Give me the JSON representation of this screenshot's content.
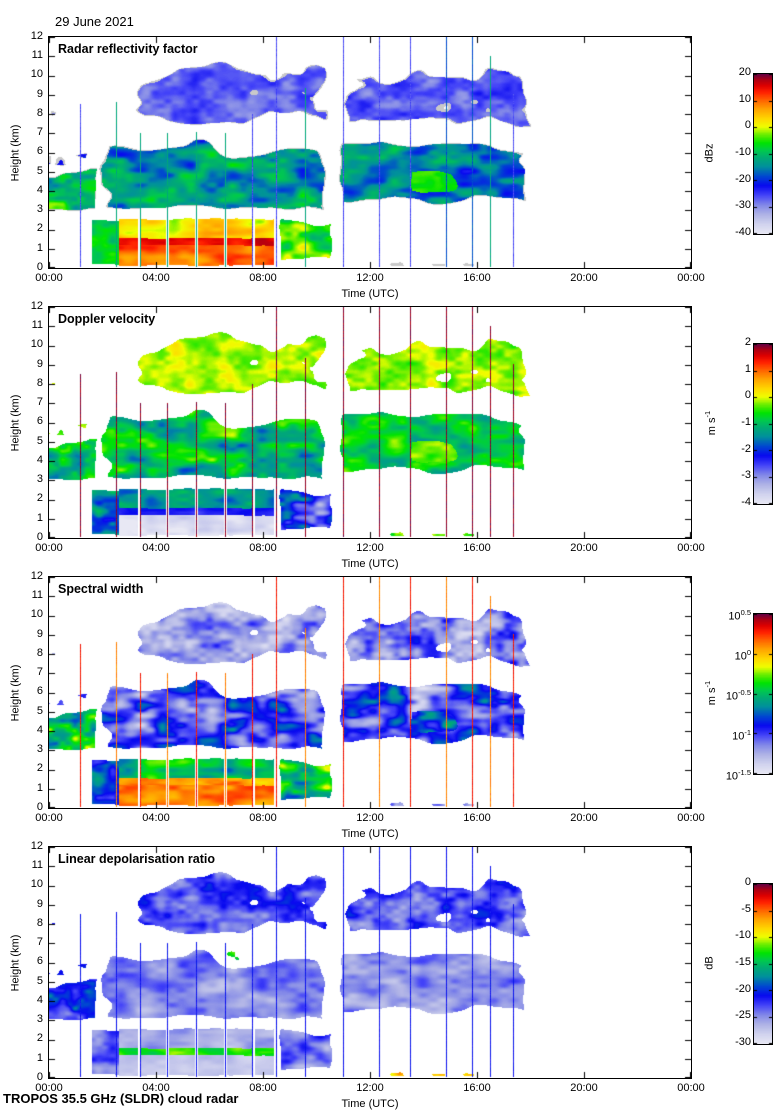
{
  "header": {
    "date": "29 June 2021"
  },
  "footer": {
    "instrument": "TROPOS 35.5 GHz (SLDR) cloud radar"
  },
  "chart_data": {
    "type": "heatmap",
    "notes": "Four stacked time-height quicklook panels of a vertically pointing cloud radar. Data present from 00:00 to about 18:20 UTC. Deep precipitating system 01:30-10:30 with rain below 2.5 km, bright melting layer near 1.3 km, cloud tops to 7 km plus cirrus 7-11 km; second non-precipitating cloud system 10:45-18:15 between 3 and 11 km; drizzle/clutter specks near the surface 10:45-16:30; thin vertical calibration-scan stripes.",
    "x_axis": {
      "label": "Time (UTC)",
      "range_hours": [
        0,
        24
      ],
      "ticks": [
        "00:00",
        "04:00",
        "08:00",
        "12:00",
        "16:00",
        "20:00",
        "00:00"
      ]
    },
    "y_axis": {
      "label": "Height (km)",
      "range_km": [
        0,
        12
      ],
      "ticks": [
        "0",
        "1",
        "2",
        "3",
        "4",
        "5",
        "6",
        "7",
        "8",
        "9",
        "10",
        "11",
        "12"
      ]
    },
    "data_extent_hours": [
      0,
      18.35
    ],
    "panels": [
      {
        "title": "Radar reflectivity factor",
        "colorbar": {
          "label": "dBz",
          "vmin": -40,
          "vmax": 20,
          "ticks": [
            "20",
            "10",
            "0",
            "-10",
            "-20",
            "-30",
            "-40"
          ]
        }
      },
      {
        "title": "Doppler velocity",
        "colorbar": {
          "label": "m s^-1",
          "vmin": -4,
          "vmax": 2,
          "ticks": [
            "2",
            "1",
            "0",
            "-1",
            "-2",
            "-3",
            "-4"
          ]
        }
      },
      {
        "title": "Spectral width",
        "colorbar": {
          "label": "m s^-1",
          "vmin": -1.5,
          "vmax": 0.5,
          "log_scale": true,
          "ticks": [
            "10^0.5",
            "10^0",
            "10^-0.5",
            "10^-1",
            "10^-1.5"
          ]
        }
      },
      {
        "title": "Linear depolarisation ratio",
        "colorbar": {
          "label": "dB",
          "vmin": -30,
          "vmax": 0,
          "ticks": [
            "0",
            "-5",
            "-10",
            "-15",
            "-20",
            "-25",
            "-30"
          ]
        }
      }
    ],
    "colormap_stops": [
      [
        0.0,
        "#e8e8f4"
      ],
      [
        0.06,
        "#d0d2ee"
      ],
      [
        0.12,
        "#aeb2e6"
      ],
      [
        0.18,
        "#8288e8"
      ],
      [
        0.24,
        "#4444f8"
      ],
      [
        0.3,
        "#0808f0"
      ],
      [
        0.36,
        "#0048d0"
      ],
      [
        0.42,
        "#00909c"
      ],
      [
        0.47,
        "#00a878"
      ],
      [
        0.52,
        "#00c850"
      ],
      [
        0.57,
        "#00e400"
      ],
      [
        0.62,
        "#66ee00"
      ],
      [
        0.67,
        "#efff00"
      ],
      [
        0.72,
        "#ffd800"
      ],
      [
        0.78,
        "#ffa400"
      ],
      [
        0.84,
        "#ff6000"
      ],
      [
        0.89,
        "#ff1e00"
      ],
      [
        0.93,
        "#dd0000"
      ],
      [
        0.97,
        "#a80016"
      ],
      [
        1.0,
        "#660042"
      ]
    ],
    "gray_color": "#c9c9c9",
    "scene_regions": [
      {
        "id": "early-top-specks",
        "seed": 13,
        "t0": 0,
        "t1": 2.7,
        "h0": 7.6,
        "h1": 9.4,
        "wh": 0.4,
        "wb": 0.3,
        "wf": 1.0,
        "sx": 1.4,
        "sy": 1.3,
        "cover": 0.22,
        "p": {
          "1": {
            "v": -28,
            "amp": 4,
            "fringe": 0.03
          },
          "2": {
            "v": 0.05,
            "amp": 0.4
          },
          "3": {
            "v": -1.25,
            "amp": 0.2
          },
          "4": {
            "v": -20,
            "amp": 5
          }
        }
      },
      {
        "id": "early-upper",
        "seed": 12,
        "t0": -0.4,
        "t1": 1.6,
        "h0": 5.0,
        "h1": 6.4,
        "wh": 0.5,
        "wb": 0.2,
        "wf": 0.8,
        "sx": 1.1,
        "sy": 1.1,
        "cover": 0.6,
        "p": {
          "1": {
            "v": -24,
            "amp": 6,
            "fringe": 0.04
          },
          "2": {
            "v": -0.15,
            "amp": 0.55
          },
          "3": {
            "v": -1.0,
            "amp": 0.35
          },
          "4": {
            "v": -21,
            "amp": 5
          }
        }
      },
      {
        "id": "early-band",
        "seed": 11,
        "t0": -0.4,
        "t1": 1.9,
        "h0": 2.6,
        "h1": 5.7,
        "wh": 0.8,
        "wb": 0.3,
        "wf": 0.8,
        "sx": 0.9,
        "sy": 0.9,
        "cover": 0.97,
        "p": {
          "1": {
            "v": -8,
            "amp": 9,
            "fringe": 0.05
          },
          "2": {
            "v": -0.8,
            "amp": 1.1
          },
          "3": {
            "v": -0.45,
            "amp": 0.5
          },
          "4": {
            "v": -21,
            "amp": 5
          }
        }
      },
      {
        "id": "upper-cloud-1",
        "seed": 15,
        "t0": 2.9,
        "t1": 10.8,
        "h0": 7.0,
        "h1": 11.2,
        "wh": 1.0,
        "wb": 0.6,
        "wf": 0.7,
        "sx": 0.8,
        "sy": 0.9,
        "cover": 0.7,
        "p": {
          "1": {
            "v": -27,
            "amp": 5,
            "fringe": 0.04
          },
          "2": {
            "v": -0.15,
            "amp": 0.45
          },
          "3": {
            "v": -1.2,
            "amp": 0.3
          },
          "4": {
            "v": -23,
            "amp": 4
          }
        }
      },
      {
        "id": "main-cloud",
        "seed": 14,
        "t0": 1.6,
        "t1": 10.7,
        "h0": 2.5,
        "h1": 7.3,
        "wh": 1.3,
        "wb": 0.4,
        "wf": 0.55,
        "sx": 0.55,
        "sy": 0.8,
        "cover": 0.96,
        "p": {
          "1": {
            "v": -14,
            "amp": 11,
            "fringe": 0.05
          },
          "2": {
            "v": -1.0,
            "amp": 1.1
          },
          "3": {
            "v": -1.0,
            "amp": 0.5
          },
          "4": {
            "v": -25,
            "amp": 3.5
          }
        }
      },
      {
        "id": "system2-top",
        "seed": 17,
        "t0": 10.7,
        "t1": 18.2,
        "h0": 7.0,
        "h1": 11.0,
        "wh": 1.1,
        "wb": 0.5,
        "wf": 0.7,
        "sx": 0.8,
        "sy": 0.95,
        "cover": 0.72,
        "p": {
          "1": {
            "v": -27,
            "amp": 5,
            "fringe": 0.04
          },
          "2": {
            "v": -0.2,
            "amp": 0.5
          },
          "3": {
            "v": -1.15,
            "amp": 0.35
          },
          "4": {
            "v": -23,
            "amp": 4
          }
        }
      },
      {
        "id": "system2-core",
        "seed": 16,
        "t0": 10.7,
        "t1": 18.35,
        "h0": 2.9,
        "h1": 7.3,
        "wh": 1.1,
        "wb": 0.5,
        "wf": 0.6,
        "sx": 0.55,
        "sy": 0.85,
        "cover": 0.94,
        "p": {
          "1": {
            "v": -16,
            "amp": 9,
            "fringe": 0.05
          },
          "2": {
            "v": -0.9,
            "amp": 0.9
          },
          "3": {
            "v": -1.0,
            "amp": 0.5
          },
          "4": {
            "v": -25,
            "amp": 3.5
          }
        }
      },
      {
        "id": "system2-warm-core",
        "seed": 18,
        "t0": 13.3,
        "t1": 16.7,
        "h0": 3.6,
        "h1": 5.4,
        "wh": 0.5,
        "wb": 0.3,
        "wf": 0.8,
        "sx": 0.7,
        "sy": 1.0,
        "cover": 0.55,
        "p": {
          "1": {
            "v": -5,
            "amp": 5
          },
          "2": {
            "v": -0.35,
            "amp": 0.4
          },
          "3": {
            "v": -0.8,
            "amp": 0.35
          }
        }
      },
      {
        "id": "low-early",
        "seed": 19,
        "t0": 1.6,
        "t1": 2.7,
        "h0": 0.15,
        "h1": 2.6,
        "wh": 0.3,
        "wb": 0.1,
        "wf": 1.0,
        "sx": 0.8,
        "sy": 1.0,
        "cover": 1,
        "hard": true,
        "p": {
          "1": {
            "v": -8,
            "amp": 6
          },
          "2": {
            "v": -1.4,
            "amp": 1.0
          },
          "3": {
            "v": -0.75,
            "amp": 0.35
          },
          "4": {
            "v": -24,
            "amp": 3
          }
        }
      },
      {
        "id": "low-late",
        "seed": 23,
        "t0": 8.55,
        "t1": 10.7,
        "h0": 0.12,
        "h1": 2.9,
        "wh": 0.5,
        "wb": 0.05,
        "wf": 1.0,
        "sx": 0.7,
        "sy": 0.9,
        "cover": 0.9,
        "p": {
          "1": {
            "v": -5,
            "amp": 9
          },
          "2": {
            "v": -2.2,
            "amp": 1.4
          },
          "3": {
            "v": -0.45,
            "amp": 0.5
          },
          "4": {
            "v": -24,
            "amp": 4
          }
        }
      },
      {
        "id": "rain-above-melting",
        "seed": 20,
        "t0": 2.6,
        "t1": 8.4,
        "h0": 1.5,
        "h1": 2.65,
        "wh": 0.25,
        "wb": 0,
        "wf": 1.2,
        "sx": 0.5,
        "sy": 1.0,
        "cover": 1,
        "hard": true,
        "p": {
          "1": {
            "v": 4,
            "amp": 6,
            "grad": -2
          },
          "2": {
            "v": -1.3,
            "amp": 0.7
          },
          "3": {
            "v": -0.5,
            "amp": 0.3
          },
          "4": {
            "v": -26,
            "amp": 2.5
          }
        }
      },
      {
        "id": "melting-layer",
        "seed": 21,
        "t0": 2.6,
        "t1": 8.4,
        "h0": 1.12,
        "h1": 1.58,
        "wh": 0.08,
        "wb": 0.05,
        "wf": 1.5,
        "sx": 0.6,
        "sy": 1.5,
        "cover": 1,
        "hard": true,
        "p": {
          "1": {
            "v": 15,
            "amp": 3
          },
          "2": {
            "v": -2.3,
            "amp": 0.3
          },
          "3": {
            "v": 0.1,
            "amp": 0.2
          },
          "4": {
            "v": -12.5,
            "amp": 2.5
          }
        }
      },
      {
        "id": "rain-below-melting",
        "seed": 22,
        "t0": 2.6,
        "t1": 8.4,
        "h0": 0.12,
        "h1": 1.2,
        "wh": 0.05,
        "wb": 0.02,
        "wf": 1.2,
        "sx": 0.5,
        "sy": 0.9,
        "cover": 1,
        "hard": true,
        "p": {
          "1": {
            "v": 10,
            "amp": 5
          },
          "2": {
            "v": -3.9,
            "amp": 0.5
          },
          "3": {
            "v": 0.12,
            "amp": 0.22
          },
          "4": {
            "v": -27.5,
            "amp": 1.5
          }
        }
      },
      {
        "id": "ldr-cloud-top-specks",
        "seed": 25,
        "t0": 2.3,
        "t1": 7.4,
        "h0": 5.9,
        "h1": 6.9,
        "wh": 0.4,
        "wb": 0.2,
        "wf": 1.0,
        "sx": 1.3,
        "sy": 1.4,
        "cover": 0.3,
        "p": {
          "4": {
            "v": -13,
            "amp": 5
          }
        }
      },
      {
        "id": "surface-drizzle",
        "seed": 24,
        "t0": 10.75,
        "t1": 16.45,
        "h0": 0.04,
        "h1": 0.62,
        "wh": 0.25,
        "wb": 0,
        "wf": 2.0,
        "sx": 1.6,
        "sy": 2.0,
        "cover": 0.38,
        "p": {
          "1": {
            "v": 0,
            "amp": 0,
            "grayOnly": true
          },
          "2": {
            "v": -0.4,
            "amp": 0.5
          },
          "3": {
            "v": -1.2,
            "amp": 0.25
          },
          "4": {
            "v": -8,
            "amp": 3
          }
        }
      }
    ],
    "scan_stripes": {
      "times_hours": [
        1.17,
        2.5,
        3.42,
        4.42,
        5.5,
        6.58,
        7.58,
        8.5,
        9.58,
        11.0,
        12.33,
        13.5,
        14.83,
        15.83,
        16.5,
        17.33
      ],
      "top_heights_km": [
        8.5,
        8.6,
        7.0,
        7.0,
        7.05,
        7.0,
        8.0,
        12.0,
        9.3,
        12.0,
        12.0,
        12.0,
        12.0,
        12.0,
        11.0,
        9.0
      ],
      "values": {
        "1": [
          -26,
          -12,
          -12,
          -12,
          -12,
          -12,
          -26,
          -26,
          -12,
          -26,
          -26,
          -26,
          -18,
          -18,
          -12,
          -26
        ],
        "2": 1.9,
        "3": [
          0.3,
          0.12,
          0.3,
          0.12,
          0.3,
          0.12,
          0.3,
          0.3,
          0.12,
          0.3,
          0.12,
          0.3,
          0.12,
          0.3,
          0.12,
          0.3
        ],
        "4": -21
      }
    },
    "data_gaps": {
      "times_hours": [
        3.35,
        4.42,
        5.5,
        6.58,
        7.64
      ],
      "max_height_km": 2.7
    }
  }
}
